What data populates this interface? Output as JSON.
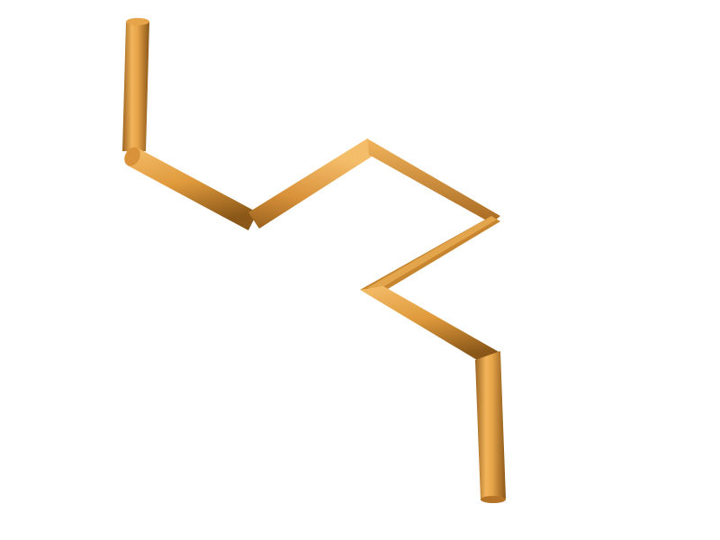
{
  "scene": {
    "background_color": "#ffffff",
    "tube_color_light": "#f2b45a",
    "tube_color_mid": "#e09a3c",
    "tube_color_dark": "#9c6420",
    "tube_color_shadow": "#7a4c16"
  }
}
